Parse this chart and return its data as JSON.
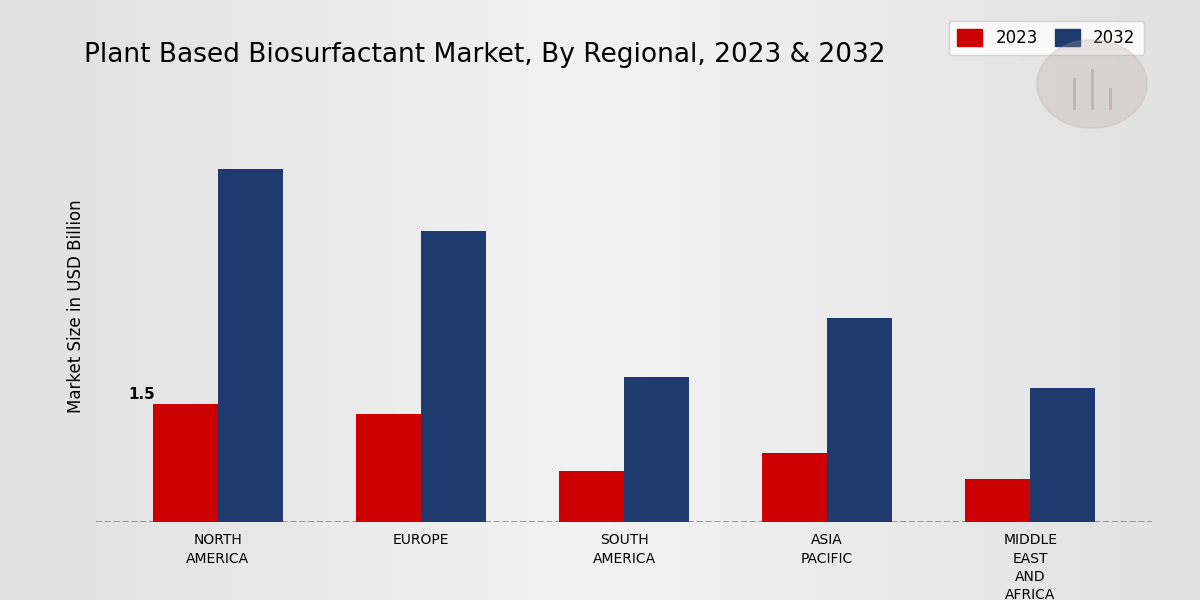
{
  "title": "Plant Based Biosurfactant Market, By Regional, 2023 & 2032",
  "ylabel": "Market Size in USD Billion",
  "categories": [
    "NORTH\nAMERICA",
    "EUROPE",
    "SOUTH\nAMERICA",
    "ASIA\nPACIFIC",
    "MIDDLE\nEAST\nAND\nAFRICA"
  ],
  "values_2023": [
    1.5,
    1.38,
    0.65,
    0.88,
    0.55
  ],
  "values_2032": [
    4.5,
    3.7,
    1.85,
    2.6,
    1.7
  ],
  "color_2023": "#cc0000",
  "color_2032": "#1e3a6e",
  "annotation_text": "1.5",
  "annotation_bar_index": 0,
  "bar_width": 0.32,
  "ylim": [
    0,
    5.5
  ],
  "bg_left": "#c8c8c8",
  "bg_center": "#e8e8e8",
  "bg_right": "#c8c8c8",
  "legend_labels": [
    "2023",
    "2032"
  ],
  "title_fontsize": 19,
  "axis_label_fontsize": 12,
  "tick_label_fontsize": 10,
  "legend_fontsize": 12,
  "red_banner_color": "#cc0000",
  "dashed_line_color": "#888888"
}
